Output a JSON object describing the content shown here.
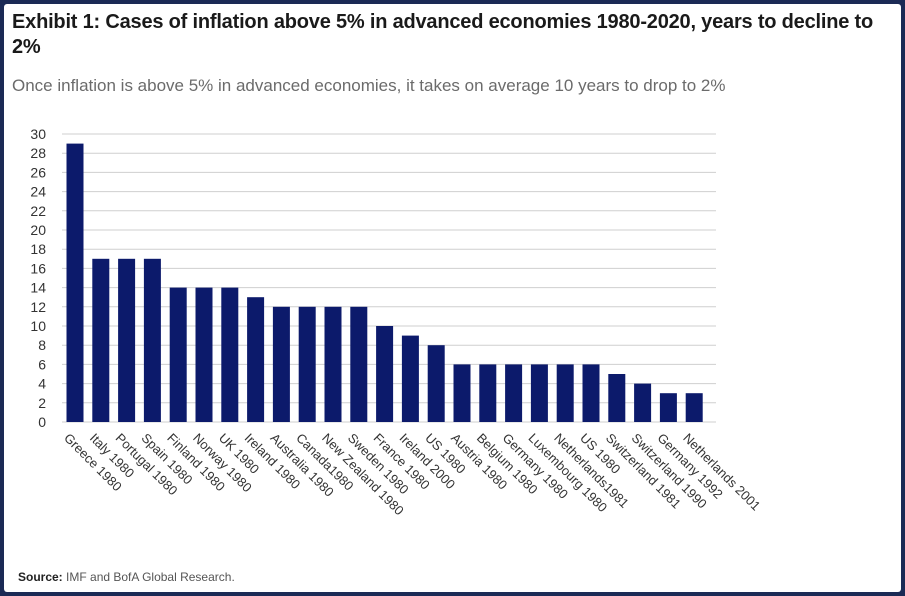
{
  "title": "Exhibit 1: Cases of inflation above 5% in advanced economies 1980-2020, years to decline to 2%",
  "subtitle": "Once inflation is above 5% in advanced economies, it takes on average 10 years to drop to 2%",
  "source": {
    "label": "Source:",
    "text": "IMF and BofA Global Research."
  },
  "colors": {
    "bar": "#0c1a6b",
    "grid": "#cfcfcf",
    "background": "#ffffff",
    "border": "#1b2a55"
  },
  "chart_data": {
    "type": "bar",
    "title": "",
    "xlabel": "",
    "ylabel": "",
    "ylim": [
      0,
      30
    ],
    "yticks": [
      0,
      2,
      4,
      6,
      8,
      10,
      12,
      14,
      16,
      18,
      20,
      22,
      24,
      26,
      28,
      30
    ],
    "grid": true,
    "categories": [
      "Greece 1980",
      "Italy 1980",
      "Portugal 1980",
      "Spain 1980",
      "Finland 1980",
      "Norway 1980",
      "UK 1980",
      "Ireland 1980",
      "Australia 1980",
      "Canada1980",
      "New Zealand 1980",
      "Sweden 1980",
      "France 1980",
      "Ireland 2000",
      "US 1980",
      "Austria 1980",
      "Belgium 1980",
      "Germany 1980",
      "Luxembourg 1980",
      "Netherlands1981",
      "US 1980",
      "Switzerland 1981",
      "Switzerland 1990",
      "Germany 1992",
      "Netherlands 2001"
    ],
    "values": [
      29,
      17,
      17,
      17,
      14,
      14,
      14,
      13,
      12,
      12,
      12,
      12,
      10,
      9,
      8,
      6,
      6,
      6,
      6,
      6,
      6,
      5,
      4,
      3,
      3
    ]
  }
}
